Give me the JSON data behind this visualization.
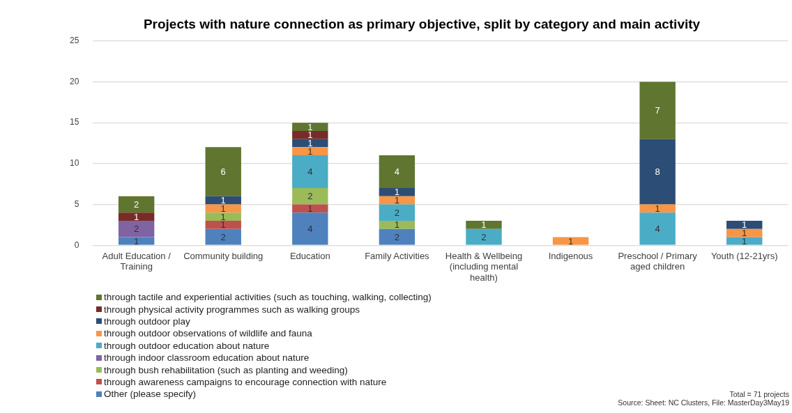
{
  "chart_data": {
    "type": "bar",
    "title": "Projects with nature connection as primary objective, split by category and main activity",
    "categories": [
      "Adult Education / Training",
      "Community building",
      "Education",
      "Family Activities",
      "Health & Wellbeing (including mental health)",
      "Indigenous",
      "Preschool / Primary aged children",
      "Youth (12-21yrs)"
    ],
    "stacked": true,
    "data_labels": true,
    "grid": "y",
    "legend": "bottom",
    "ylim": [
      0,
      25
    ],
    "yticks": [
      0,
      5,
      10,
      15,
      20,
      25
    ],
    "series": [
      {
        "name": "Other (please specify)",
        "color": "#4f81bd",
        "values": [
          1,
          2,
          4,
          2,
          null,
          null,
          null,
          null
        ]
      },
      {
        "name": "through awareness campaigns to encourage connection with nature",
        "color": "#c0504d",
        "values": [
          null,
          1,
          1,
          null,
          null,
          null,
          null,
          null
        ]
      },
      {
        "name": "through bush rehabilitation (such as planting and weeding)",
        "color": "#9bbb59",
        "values": [
          null,
          1,
          2,
          1,
          null,
          null,
          null,
          null
        ]
      },
      {
        "name": "through indoor classroom education about nature",
        "color": "#8064a2",
        "values": [
          2,
          null,
          null,
          null,
          null,
          null,
          null,
          null
        ]
      },
      {
        "name": "through outdoor education about nature",
        "color": "#4bacc6",
        "values": [
          null,
          null,
          4,
          2,
          2,
          null,
          4,
          1
        ]
      },
      {
        "name": "through outdoor observations of wildlife and fauna",
        "color": "#f79646",
        "values": [
          null,
          1,
          1,
          1,
          null,
          1,
          1,
          1
        ]
      },
      {
        "name": "through outdoor play",
        "color": "#2c4d75",
        "values": [
          null,
          1,
          1,
          1,
          null,
          null,
          8,
          1
        ]
      },
      {
        "name": "through physical activity programmes such as walking groups",
        "color": "#772c2a",
        "values": [
          1,
          null,
          1,
          null,
          null,
          null,
          null,
          null
        ]
      },
      {
        "name": "through tactile and experiential activities (such as touching, walking, collecting)",
        "color": "#5f7530",
        "values": [
          2,
          6,
          1,
          4,
          1,
          null,
          7,
          null
        ]
      }
    ],
    "annotations": [
      "Total = 71 projects",
      "Source:  Sheet:  NC Clusters, File: MasterDay3May19"
    ]
  }
}
